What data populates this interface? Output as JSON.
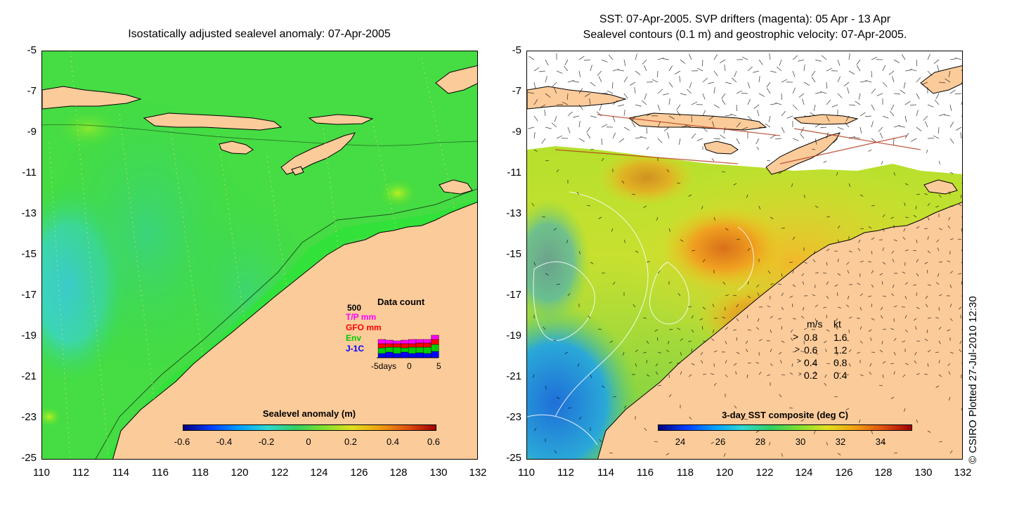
{
  "left_panel": {
    "title": "Isostatically adjusted sealevel anomaly: 07-Apr-2005",
    "y_ticks": [
      "-5",
      "-7",
      "-9",
      "-11",
      "-13",
      "-15",
      "-17",
      "-19",
      "-21",
      "-23",
      "-25"
    ],
    "x_ticks": [
      "110",
      "112",
      "114",
      "116",
      "118",
      "120",
      "122",
      "124",
      "126",
      "128",
      "130",
      "132"
    ],
    "colorbar_title": "Sealevel anomaly (m)",
    "colorbar_ticks": [
      "-0.6",
      "-0.4",
      "-0.2",
      "0",
      "0.2",
      "0.4",
      "0.6"
    ],
    "data_count": {
      "title": "Data count",
      "max_label": "500",
      "series": [
        {
          "name": "T/P mm",
          "color": "#ff00ff"
        },
        {
          "name": "GFO mm",
          "color": "#ff0000"
        },
        {
          "name": "Env",
          "color": "#00cc00"
        },
        {
          "name": "J-1C",
          "color": "#0000ff"
        }
      ],
      "x_label": "-5days",
      "x_mid": "0",
      "x_end": "5"
    }
  },
  "right_panel": {
    "title_line1": "SST: 07-Apr-2005. SVP drifters (magenta): 05 Apr - 13 Apr",
    "title_line2": "Sealevel contours (0.1 m) and geostrophic velocity: 07-Apr-2005.",
    "y_ticks": [
      "-5",
      "-7",
      "-9",
      "-11",
      "-13",
      "-15",
      "-17",
      "-19",
      "-21",
      "-23",
      "-25"
    ],
    "x_ticks": [
      "110",
      "112",
      "114",
      "116",
      "118",
      "120",
      "122",
      "124",
      "126",
      "128",
      "130",
      "132"
    ],
    "colorbar_title": "3-day SST composite (deg C)",
    "colorbar_ticks": [
      "24",
      "26",
      "28",
      "30",
      "32",
      "34"
    ],
    "velocity_legend": {
      "header_ms": "m/s",
      "header_kt": "kt",
      "rows": [
        {
          "ms": "0.8",
          "kt": "1.6"
        },
        {
          "ms": "0.6",
          "kt": "1.2"
        },
        {
          "ms": "0.4",
          "kt": "0.8"
        },
        {
          "ms": "0.2",
          "kt": "0.4"
        }
      ]
    }
  },
  "credit": "© CSIRO Plotted 27-Jul-2010 12:30",
  "colors": {
    "land": "#fccb9a",
    "sla_base": "#33dd33",
    "sla_low": "#33ccdd",
    "sst_warm": "#f5b01e",
    "sst_hot": "#e07a10",
    "sst_mid": "#9ee02a",
    "sst_cool": "#2a9adf"
  }
}
